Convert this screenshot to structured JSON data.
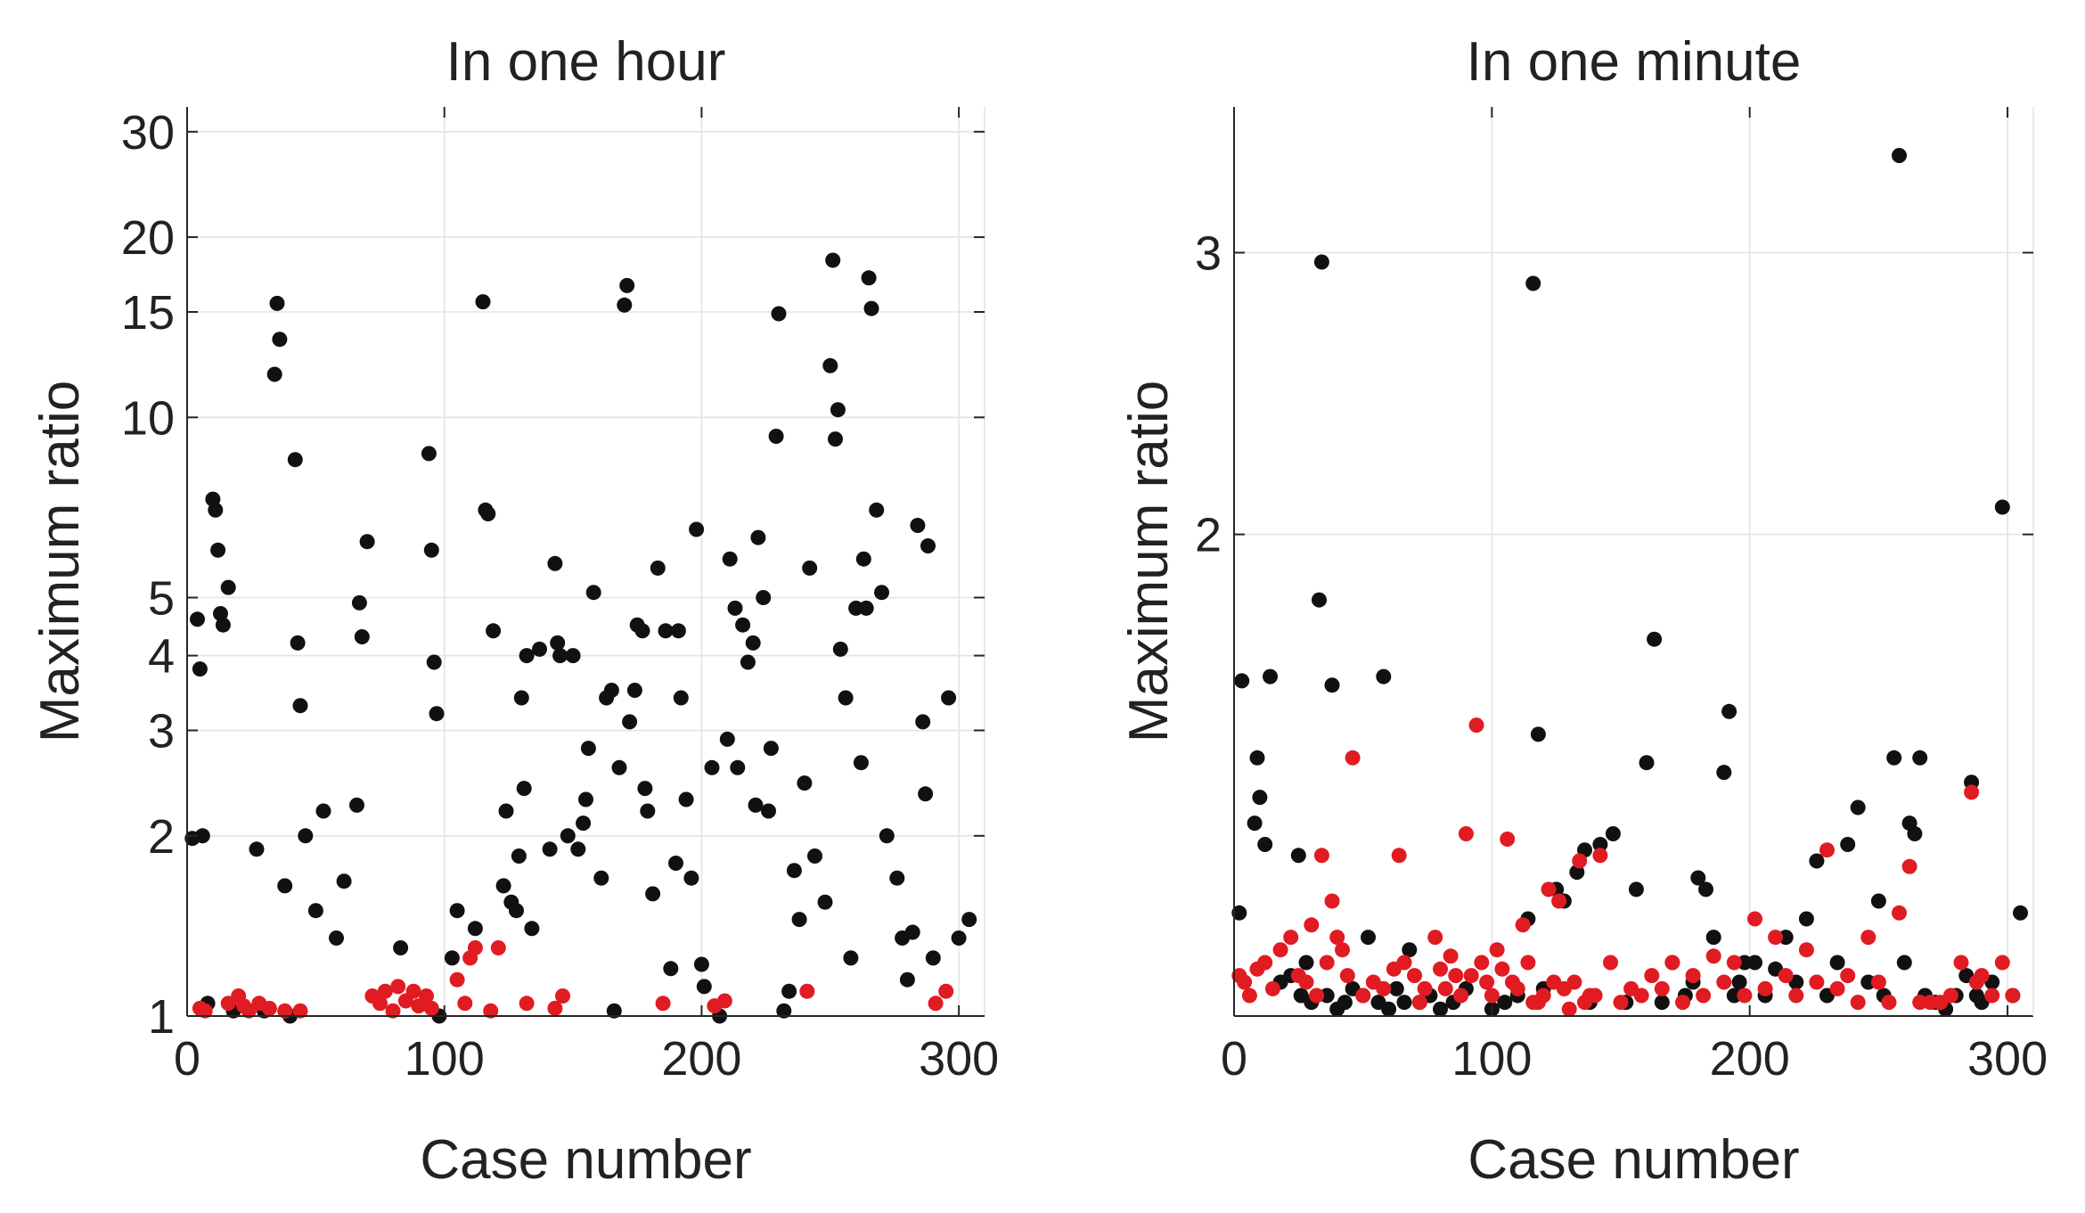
{
  "chart_data": [
    {
      "type": "scatter",
      "title": "In one hour",
      "xlabel": "Case number",
      "ylabel": "Maximum ratio",
      "xlim": [
        0,
        310
      ],
      "ylim": [
        1,
        33
      ],
      "yscale": "log",
      "grid": true,
      "xticks": [
        0,
        100,
        200,
        300
      ],
      "yticks": [
        1,
        2,
        3,
        4,
        5,
        10,
        15,
        20,
        30
      ],
      "colors": {
        "black": "#111111",
        "red": "#e11b22"
      },
      "series": [
        {
          "color": "black",
          "x": [
            2,
            4,
            5,
            6,
            8,
            10,
            11,
            12,
            13,
            14,
            16,
            18,
            27,
            30,
            34,
            35,
            36,
            38,
            40,
            42,
            43,
            44,
            46,
            50,
            53,
            58,
            61,
            66,
            67,
            68,
            70,
            83,
            94,
            95,
            96,
            97,
            98,
            103,
            105,
            112,
            115,
            116,
            117,
            119,
            123,
            124,
            126,
            128,
            129,
            130,
            131,
            132,
            134,
            137,
            141,
            143,
            144,
            145,
            148,
            150,
            152,
            154,
            155,
            156,
            158,
            161,
            163,
            165,
            166,
            168,
            170,
            171,
            172,
            174,
            175,
            177,
            178,
            179,
            181,
            183,
            186,
            188,
            190,
            191,
            192,
            194,
            196,
            198,
            200,
            201,
            204,
            207,
            210,
            211,
            213,
            214,
            216,
            218,
            220,
            221,
            222,
            224,
            226,
            227,
            229,
            230,
            232,
            234,
            236,
            238,
            240,
            242,
            244,
            248,
            250,
            251,
            252,
            253,
            254,
            256,
            258,
            260,
            262,
            263,
            264,
            265,
            266,
            268,
            270,
            272,
            276,
            278,
            280,
            282,
            284,
            286,
            287,
            288,
            290,
            296,
            300,
            304
          ],
          "y": [
            1.98,
            4.6,
            3.8,
            2.0,
            1.05,
            7.3,
            7.0,
            6.0,
            4.7,
            4.5,
            5.2,
            1.02,
            1.9,
            1.02,
            11.8,
            15.5,
            13.5,
            1.65,
            1.0,
            8.5,
            4.2,
            3.3,
            2.0,
            1.5,
            2.2,
            1.35,
            1.68,
            2.25,
            4.9,
            4.3,
            6.2,
            1.3,
            8.7,
            6.0,
            3.9,
            3.2,
            1.0,
            1.25,
            1.5,
            1.4,
            15.6,
            7.0,
            6.9,
            4.4,
            1.65,
            2.2,
            1.55,
            1.5,
            1.85,
            3.4,
            2.4,
            4.0,
            1.4,
            4.1,
            1.9,
            5.7,
            4.2,
            4.0,
            2.0,
            4.0,
            1.9,
            2.1,
            2.3,
            2.8,
            5.1,
            1.7,
            3.4,
            3.5,
            1.02,
            2.6,
            15.4,
            16.6,
            3.1,
            3.5,
            4.5,
            4.4,
            2.4,
            2.2,
            1.6,
            5.6,
            4.4,
            1.2,
            1.8,
            4.4,
            3.4,
            2.3,
            1.7,
            6.5,
            1.22,
            1.12,
            2.6,
            1.0,
            2.9,
            5.8,
            4.8,
            2.6,
            4.5,
            3.9,
            4.2,
            2.25,
            6.3,
            5.0,
            2.2,
            2.8,
            9.3,
            14.9,
            1.02,
            1.1,
            1.75,
            1.45,
            2.45,
            5.6,
            1.85,
            1.55,
            12.2,
            18.3,
            9.2,
            10.3,
            4.1,
            3.4,
            1.25,
            4.8,
            2.65,
            5.8,
            4.8,
            17.1,
            15.2,
            7.0,
            5.1,
            2.0,
            1.7,
            1.35,
            1.15,
            1.38,
            6.6,
            3.1,
            2.35,
            6.1,
            1.25,
            3.4,
            1.35,
            1.45
          ]
        },
        {
          "color": "red",
          "x": [
            5,
            7,
            16,
            20,
            22,
            24,
            28,
            32,
            38,
            44,
            72,
            75,
            77,
            80,
            82,
            85,
            88,
            90,
            93,
            95,
            105,
            108,
            110,
            112,
            118,
            121,
            132,
            143,
            146,
            185,
            205,
            209,
            241,
            291,
            295
          ],
          "y": [
            1.03,
            1.02,
            1.05,
            1.08,
            1.04,
            1.02,
            1.05,
            1.03,
            1.02,
            1.02,
            1.08,
            1.05,
            1.1,
            1.02,
            1.12,
            1.06,
            1.1,
            1.04,
            1.08,
            1.03,
            1.15,
            1.05,
            1.25,
            1.3,
            1.02,
            1.3,
            1.05,
            1.03,
            1.08,
            1.05,
            1.04,
            1.06,
            1.1,
            1.05,
            1.1
          ]
        }
      ]
    },
    {
      "type": "scatter",
      "title": "In one minute",
      "xlabel": "Case number",
      "ylabel": "Maximum ratio",
      "xlim": [
        0,
        310
      ],
      "ylim": [
        1,
        3.7
      ],
      "yscale": "log",
      "grid": true,
      "xticks": [
        0,
        100,
        200,
        300
      ],
      "yticks": [
        2,
        3
      ],
      "colors": {
        "black": "#111111",
        "red": "#e11b22"
      },
      "series": [
        {
          "color": "black",
          "x": [
            2,
            3,
            8,
            9,
            10,
            12,
            14,
            18,
            22,
            25,
            26,
            28,
            30,
            33,
            34,
            36,
            38,
            40,
            43,
            46,
            50,
            52,
            56,
            58,
            60,
            63,
            66,
            68,
            72,
            76,
            80,
            85,
            90,
            100,
            105,
            110,
            114,
            116,
            118,
            120,
            125,
            128,
            133,
            136,
            138,
            142,
            147,
            152,
            156,
            160,
            163,
            166,
            170,
            175,
            178,
            180,
            183,
            186,
            190,
            192,
            194,
            196,
            198,
            202,
            206,
            210,
            214,
            218,
            222,
            226,
            230,
            234,
            238,
            242,
            246,
            250,
            252,
            256,
            258,
            260,
            262,
            264,
            266,
            268,
            272,
            276,
            280,
            284,
            286,
            288,
            290,
            294,
            298,
            302,
            305
          ],
          "y": [
            1.16,
            1.62,
            1.32,
            1.45,
            1.37,
            1.28,
            1.63,
            1.05,
            1.06,
            1.26,
            1.03,
            1.08,
            1.02,
            1.82,
            2.96,
            1.03,
            1.61,
            1.01,
            1.02,
            1.04,
            1.03,
            1.12,
            1.02,
            1.63,
            1.01,
            1.04,
            1.02,
            1.1,
            1.02,
            1.03,
            1.01,
            1.02,
            1.04,
            1.01,
            1.02,
            1.03,
            1.15,
            2.87,
            1.5,
            1.04,
            1.2,
            1.18,
            1.23,
            1.27,
            1.02,
            1.28,
            1.3,
            1.02,
            1.2,
            1.44,
            1.72,
            1.02,
            1.08,
            1.03,
            1.05,
            1.22,
            1.2,
            1.12,
            1.42,
            1.55,
            1.03,
            1.05,
            1.08,
            1.08,
            1.03,
            1.07,
            1.12,
            1.05,
            1.15,
            1.25,
            1.03,
            1.08,
            1.28,
            1.35,
            1.05,
            1.18,
            1.03,
            1.45,
            3.45,
            1.08,
            1.32,
            1.3,
            1.45,
            1.03,
            1.02,
            1.01,
            1.03,
            1.06,
            1.4,
            1.03,
            1.02,
            1.05,
            2.08,
            1.03,
            1.16
          ]
        },
        {
          "color": "red",
          "x": [
            2,
            4,
            6,
            9,
            12,
            15,
            18,
            22,
            25,
            28,
            30,
            32,
            34,
            36,
            38,
            40,
            42,
            44,
            46,
            50,
            54,
            58,
            62,
            64,
            66,
            70,
            72,
            74,
            78,
            80,
            82,
            84,
            86,
            88,
            90,
            92,
            94,
            96,
            98,
            100,
            102,
            104,
            106,
            108,
            110,
            112,
            114,
            116,
            118,
            120,
            122,
            124,
            126,
            128,
            130,
            132,
            134,
            136,
            138,
            140,
            142,
            146,
            150,
            154,
            158,
            162,
            166,
            170,
            174,
            178,
            182,
            186,
            190,
            194,
            198,
            202,
            206,
            210,
            214,
            218,
            222,
            226,
            230,
            234,
            238,
            242,
            246,
            250,
            254,
            258,
            262,
            266,
            270,
            274,
            278,
            282,
            286,
            288,
            290,
            294,
            298,
            302
          ],
          "y": [
            1.06,
            1.05,
            1.03,
            1.07,
            1.08,
            1.04,
            1.1,
            1.12,
            1.06,
            1.05,
            1.14,
            1.03,
            1.26,
            1.08,
            1.18,
            1.12,
            1.1,
            1.06,
            1.45,
            1.03,
            1.05,
            1.04,
            1.07,
            1.26,
            1.08,
            1.06,
            1.02,
            1.04,
            1.12,
            1.07,
            1.04,
            1.09,
            1.06,
            1.03,
            1.3,
            1.06,
            1.52,
            1.08,
            1.05,
            1.03,
            1.1,
            1.07,
            1.29,
            1.05,
            1.04,
            1.14,
            1.08,
            1.02,
            1.02,
            1.03,
            1.2,
            1.05,
            1.18,
            1.04,
            1.01,
            1.05,
            1.25,
            1.02,
            1.03,
            1.03,
            1.26,
            1.08,
            1.02,
            1.04,
            1.03,
            1.06,
            1.04,
            1.08,
            1.02,
            1.06,
            1.03,
            1.09,
            1.05,
            1.08,
            1.03,
            1.15,
            1.04,
            1.12,
            1.06,
            1.03,
            1.1,
            1.05,
            1.27,
            1.04,
            1.06,
            1.02,
            1.12,
            1.05,
            1.02,
            1.16,
            1.24,
            1.02,
            1.02,
            1.02,
            1.03,
            1.08,
            1.38,
            1.05,
            1.06,
            1.03,
            1.08,
            1.03
          ]
        }
      ]
    }
  ]
}
